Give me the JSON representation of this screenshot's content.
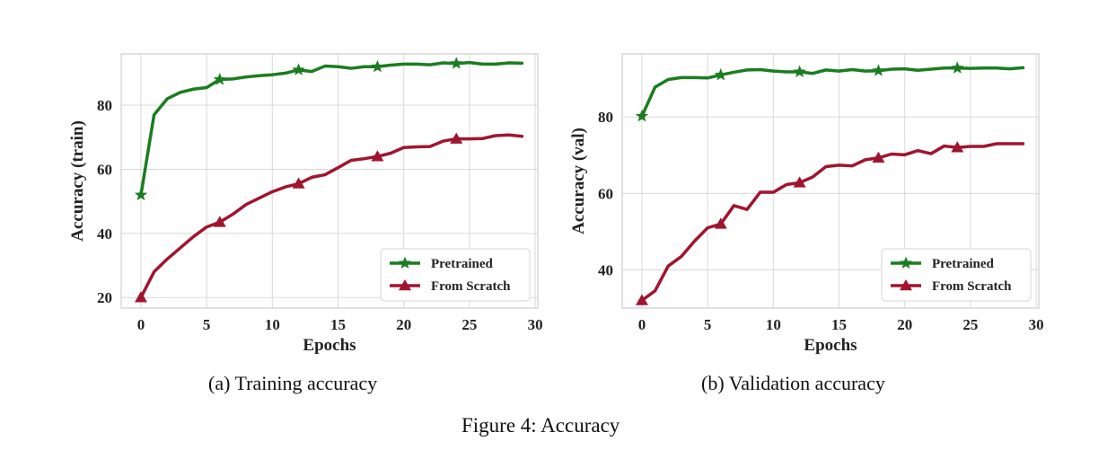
{
  "figure": {
    "caption": "Figure 4: Accuracy",
    "colors": {
      "pretrained": "#1a7d1f",
      "scratch": "#a0152e"
    }
  },
  "chart_data": [
    {
      "type": "line",
      "caption": "(a) Training accuracy",
      "xlabel": "Epochs",
      "ylabel": "Accuracy (train)",
      "xlim": [
        -1.5,
        30.2
      ],
      "ylim": [
        16.7,
        96
      ],
      "xticks": [
        0,
        5,
        10,
        15,
        20,
        25,
        30
      ],
      "yticks": [
        20,
        40,
        60,
        80
      ],
      "grid": true,
      "legend_position": "bottom-right",
      "x": [
        0,
        1,
        2,
        3,
        4,
        5,
        6,
        7,
        8,
        9,
        10,
        11,
        12,
        13,
        14,
        15,
        16,
        17,
        18,
        19,
        20,
        21,
        22,
        23,
        24,
        25,
        26,
        27,
        28,
        29
      ],
      "series": [
        {
          "name": "Pretrained",
          "color": "#1a7d1f",
          "marker": "star",
          "values": [
            52,
            77,
            82,
            84,
            85,
            85.5,
            88,
            88.2,
            88.8,
            89.2,
            89.5,
            90,
            91,
            90.5,
            92.2,
            92,
            91.5,
            92,
            92,
            92.5,
            92.8,
            92.8,
            92.6,
            93.2,
            93,
            93.3,
            92.8,
            92.8,
            93.2,
            93.1
          ]
        },
        {
          "name": "From Scratch",
          "color": "#a0152e",
          "marker": "triangle",
          "values": [
            20,
            28,
            32,
            35.5,
            39,
            42,
            43.5,
            46,
            49,
            51,
            53,
            54.5,
            55.5,
            57.5,
            58.3,
            60.5,
            62.8,
            63.3,
            64,
            65,
            66.8,
            67,
            67.1,
            68.8,
            69.5,
            69.5,
            69.6,
            70.5,
            70.7,
            70.3
          ]
        }
      ]
    },
    {
      "type": "line",
      "caption": "(b) Validation accuracy",
      "xlabel": "Epochs",
      "ylabel": "Accuracy (val)",
      "xlim": [
        -1.5,
        30.2
      ],
      "ylim": [
        30,
        96.5
      ],
      "xticks": [
        0,
        5,
        10,
        15,
        20,
        25,
        30
      ],
      "yticks": [
        40,
        60,
        80
      ],
      "grid": true,
      "legend_position": "bottom-right",
      "x": [
        0,
        1,
        2,
        3,
        4,
        5,
        6,
        7,
        8,
        9,
        10,
        11,
        12,
        13,
        14,
        15,
        16,
        17,
        18,
        19,
        20,
        21,
        22,
        23,
        24,
        25,
        26,
        27,
        28,
        29
      ],
      "series": [
        {
          "name": "Pretrained",
          "color": "#1a7d1f",
          "marker": "star",
          "values": [
            80.2,
            87.8,
            89.8,
            90.3,
            90.3,
            90.2,
            91,
            91.7,
            92.3,
            92.4,
            92,
            91.8,
            91.8,
            91.4,
            92.3,
            92,
            92.4,
            92,
            92.1,
            92.5,
            92.6,
            92.2,
            92.5,
            92.8,
            92.8,
            92.7,
            92.8,
            92.8,
            92.6,
            92.9
          ]
        },
        {
          "name": "From Scratch",
          "color": "#a0152e",
          "marker": "triangle",
          "values": [
            32,
            34.5,
            41,
            43.5,
            47.5,
            51,
            52,
            56.8,
            55.8,
            60.3,
            60.3,
            62.3,
            62.8,
            64.3,
            67,
            67.4,
            67.2,
            68.8,
            69.3,
            70.3,
            70.1,
            71.2,
            70.4,
            72.4,
            72,
            72.3,
            72.3,
            73,
            73,
            73
          ]
        }
      ]
    }
  ]
}
